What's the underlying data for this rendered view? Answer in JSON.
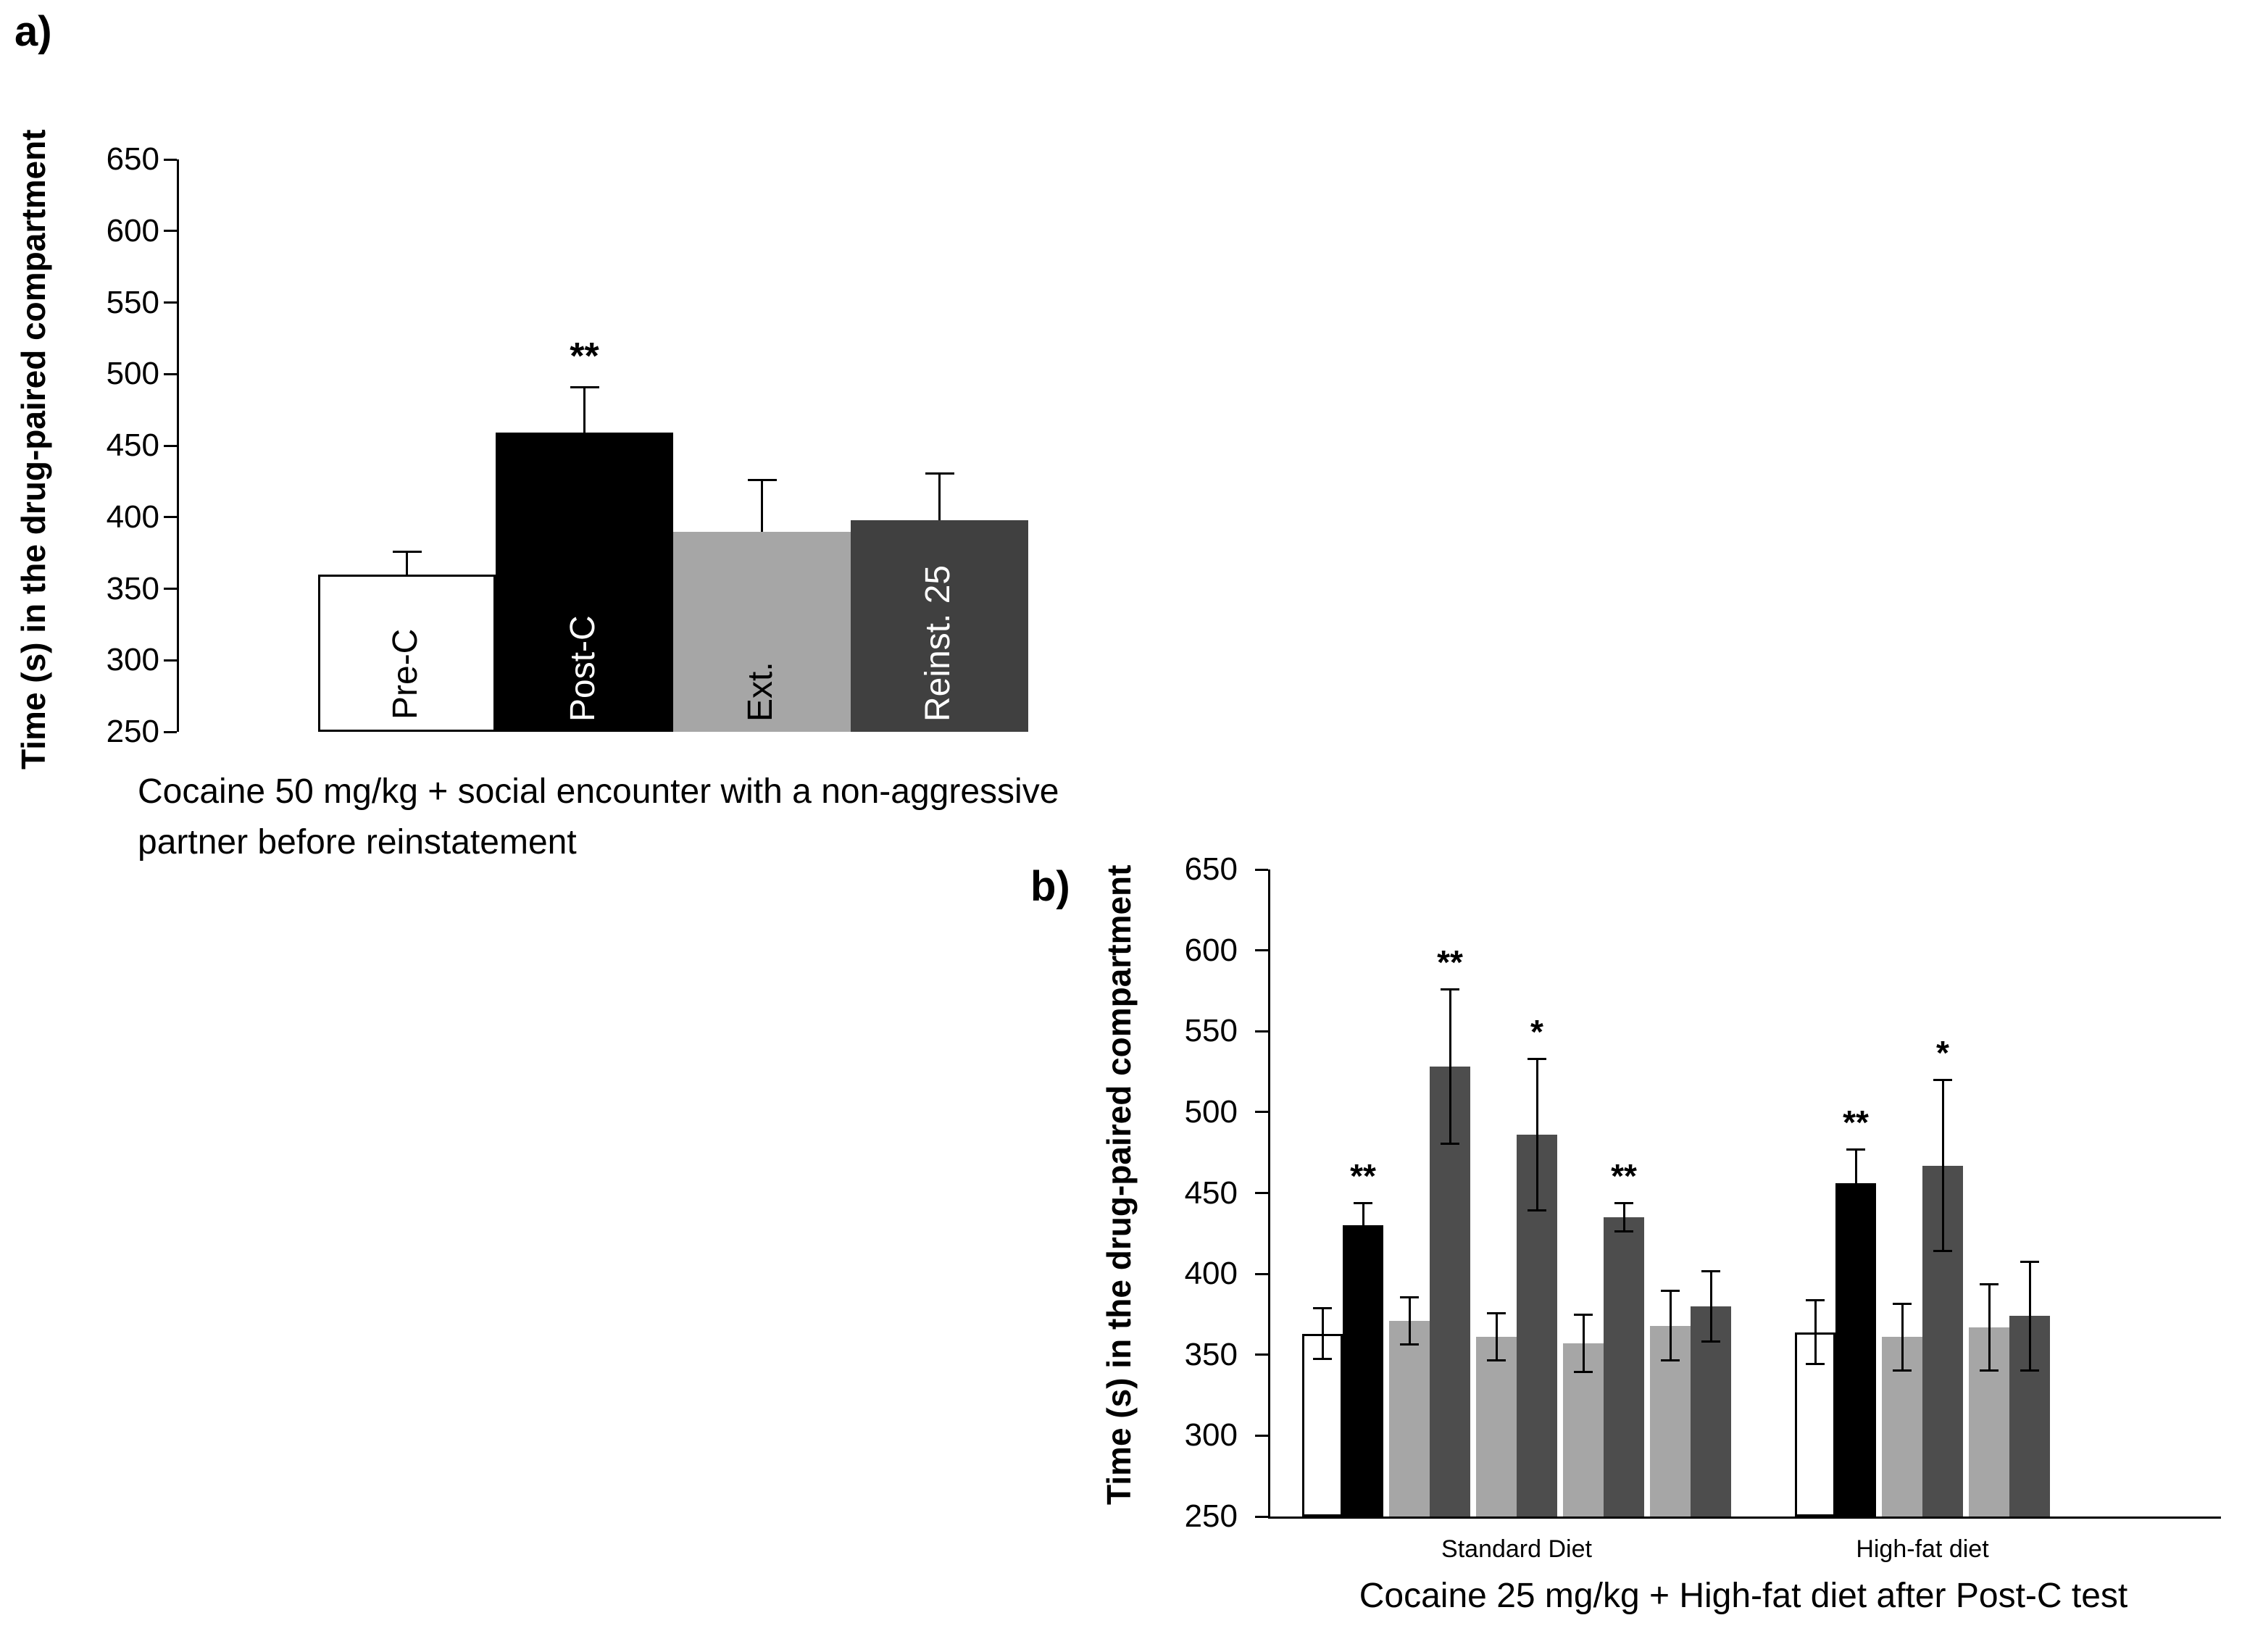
{
  "figure": {
    "background": "#ffffff",
    "bar_colors": {
      "pre_c": "#ffffff",
      "post_c": "#000000",
      "ext": "#a6a6a6",
      "reinst": "#404040",
      "reinst_b": "#4d4d4d"
    }
  },
  "chart_data": [
    {
      "type": "bar",
      "panel_label": "a)",
      "ylabel": "Time (s) in the drug-paired compartment",
      "caption_lines": [
        "Cocaine 50 mg/kg + social encounter with a non-aggressive",
        "partner before reinstatement"
      ],
      "ylim": [
        250,
        650
      ],
      "ytick_step": 50,
      "yticks": [
        250,
        300,
        350,
        400,
        450,
        500,
        550,
        600,
        650
      ],
      "grid": false,
      "legend": "none",
      "error_bars": "upper",
      "bars": [
        {
          "label": "Pre-C",
          "value": 360,
          "err": 15,
          "sig": "",
          "color": "#ffffff",
          "border": "#000000",
          "label_color": "#000000"
        },
        {
          "label": "Post-C",
          "value": 459,
          "err": 31,
          "sig": "**",
          "color": "#000000",
          "border": "",
          "label_color": "#ffffff"
        },
        {
          "label": "Ext.",
          "value": 390,
          "err": 35,
          "sig": "",
          "color": "#a6a6a6",
          "border": "",
          "label_color": "#000000"
        },
        {
          "label": "Reinst. 25",
          "value": 398,
          "err": 32,
          "sig": "",
          "color": "#404040",
          "border": "",
          "label_color": "#ffffff"
        }
      ]
    },
    {
      "type": "bar",
      "panel_label": "b)",
      "ylabel": "Time (s) in the drug-paired compartment",
      "caption_lines": [
        "Cocaine 25 mg/kg + High-fat diet after Post-C test"
      ],
      "ylim": [
        250,
        650
      ],
      "ytick_step": 50,
      "yticks": [
        250,
        300,
        350,
        400,
        450,
        500,
        550,
        600,
        650
      ],
      "grid": false,
      "legend": "none",
      "error_bars": "both",
      "groups": [
        {
          "label": "Standard Diet",
          "bars": [
            {
              "value": 363,
              "err": 15,
              "sig": "",
              "color": "#ffffff",
              "border": "#000000"
            },
            {
              "value": 430,
              "err": 13,
              "sig": "**",
              "color": "#000000",
              "border": ""
            },
            {
              "value": 371,
              "err": 14,
              "sig": "",
              "color": "#a6a6a6",
              "border": ""
            },
            {
              "value": 528,
              "err": 47,
              "sig": "**",
              "color": "#4d4d4d",
              "border": ""
            },
            {
              "value": 361,
              "err": 14,
              "sig": "",
              "color": "#a6a6a6",
              "border": ""
            },
            {
              "value": 486,
              "err": 46,
              "sig": "*",
              "color": "#4d4d4d",
              "border": ""
            },
            {
              "value": 357,
              "err": 17,
              "sig": "",
              "color": "#a6a6a6",
              "border": ""
            },
            {
              "value": 435,
              "err": 8,
              "sig": "**",
              "color": "#4d4d4d",
              "border": ""
            },
            {
              "value": 368,
              "err": 21,
              "sig": "",
              "color": "#a6a6a6",
              "border": ""
            },
            {
              "value": 380,
              "err": 21,
              "sig": "",
              "color": "#4d4d4d",
              "border": ""
            }
          ]
        },
        {
          "label": "High-fat diet",
          "bars": [
            {
              "value": 364,
              "err": 19,
              "sig": "",
              "color": "#ffffff",
              "border": "#000000"
            },
            {
              "value": 456,
              "err": 20,
              "sig": "**",
              "color": "#000000",
              "border": ""
            },
            {
              "value": 361,
              "err": 20,
              "sig": "",
              "color": "#a6a6a6",
              "border": ""
            },
            {
              "value": 467,
              "err": 52,
              "sig": "*",
              "color": "#4d4d4d",
              "border": ""
            },
            {
              "value": 367,
              "err": 26,
              "sig": "",
              "color": "#a6a6a6",
              "border": ""
            },
            {
              "value": 374,
              "err": 33,
              "sig": "",
              "color": "#4d4d4d",
              "border": ""
            }
          ]
        }
      ]
    }
  ]
}
